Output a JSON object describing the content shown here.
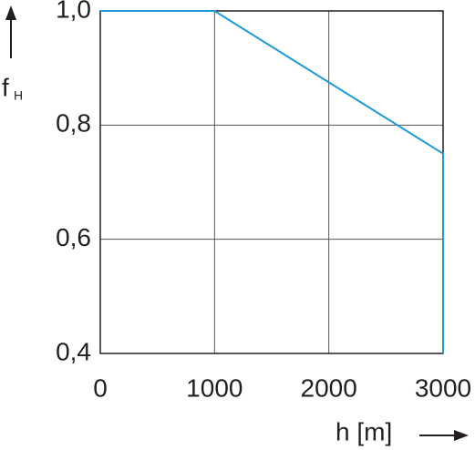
{
  "chart_data": {
    "type": "line",
    "xlabel": "h [m]",
    "ylabel": "f",
    "ylabel_subscript": "H",
    "series": [
      {
        "color": "#1e9bd7",
        "x": [
          0,
          1000,
          3000,
          3000
        ],
        "values": [
          1.0,
          1.0,
          0.75,
          0.4
        ]
      }
    ],
    "xlim": [
      0,
      3000
    ],
    "xticks": [
      0,
      1000,
      2000,
      3000
    ],
    "ylim": [
      0.4,
      1.0
    ],
    "yticks": [
      {
        "value": 0.4,
        "label": "0,4"
      },
      {
        "value": 0.6,
        "label": "0,6"
      },
      {
        "value": 0.8,
        "label": "0,8"
      },
      {
        "value": 1.0,
        "label": "1,0"
      }
    ],
    "grid": true
  }
}
